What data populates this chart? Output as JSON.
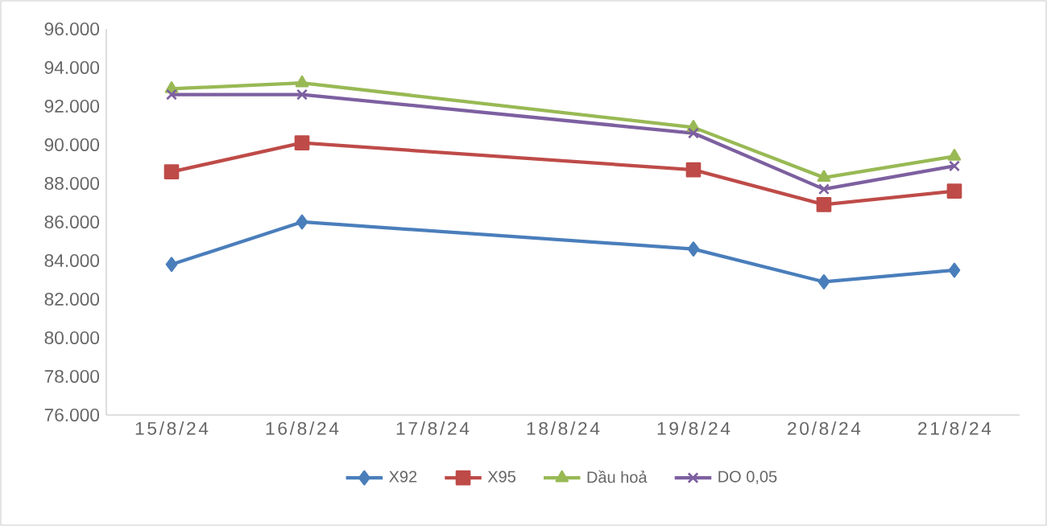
{
  "chart_data": {
    "type": "line",
    "categories": [
      "15/8/24",
      "16/8/24",
      "17/8/24",
      "18/8/24",
      "19/8/24",
      "20/8/24",
      "21/8/24"
    ],
    "series": [
      {
        "name": "X92",
        "color": "#4a7ebb",
        "marker": "diamond",
        "values": [
          83800,
          86000,
          null,
          null,
          84600,
          82900,
          83500
        ]
      },
      {
        "name": "X95",
        "color": "#be4b48",
        "marker": "square",
        "values": [
          88600,
          90100,
          null,
          null,
          88700,
          86900,
          87600
        ]
      },
      {
        "name": "Dầu hoả",
        "color": "#98b954",
        "marker": "triangle",
        "values": [
          92900,
          93200,
          null,
          null,
          90900,
          88300,
          89400
        ]
      },
      {
        "name": "DO 0,05",
        "color": "#7d60a0",
        "marker": "cross",
        "values": [
          92600,
          92600,
          null,
          null,
          90600,
          87700,
          88900
        ]
      }
    ],
    "ylim": [
      76000,
      96000
    ],
    "yticks": [
      {
        "value": 76000,
        "label": "76.000"
      },
      {
        "value": 78000,
        "label": "78.000"
      },
      {
        "value": 80000,
        "label": "80.000"
      },
      {
        "value": 82000,
        "label": "82.000"
      },
      {
        "value": 84000,
        "label": "84.000"
      },
      {
        "value": 86000,
        "label": "86.000"
      },
      {
        "value": 88000,
        "label": "88.000"
      },
      {
        "value": 90000,
        "label": "90.000"
      },
      {
        "value": 92000,
        "label": "92.000"
      },
      {
        "value": 94000,
        "label": "94.000"
      },
      {
        "value": 96000,
        "label": "96.000"
      }
    ],
    "grid": false,
    "legend": "bottom",
    "line_style": "solid"
  }
}
